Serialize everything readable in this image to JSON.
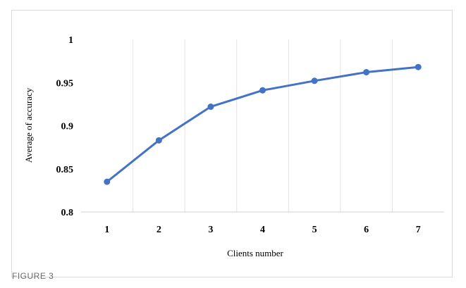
{
  "caption": "FIGURE 3",
  "colors": {
    "series": "#4472c4",
    "grid": "#e3e3e3",
    "axis": "#d0d0d0",
    "text": "#000000"
  },
  "chart_data": {
    "type": "line",
    "title": "",
    "xlabel": "Clients number",
    "ylabel": "Average of accuracy",
    "x": [
      1,
      2,
      3,
      4,
      5,
      6,
      7
    ],
    "x_tick_labels": [
      "1",
      "2",
      "3",
      "4",
      "5",
      "6",
      "7"
    ],
    "ylim": [
      0.8,
      1
    ],
    "y_ticks": [
      0.8,
      0.85,
      0.9,
      0.95,
      1
    ],
    "y_tick_labels": [
      "0.8",
      "0.85",
      "0.9",
      "0.95",
      "1"
    ],
    "grid": "vertical",
    "legend": "none",
    "series": [
      {
        "name": "Average of accuracy",
        "values": [
          0.835,
          0.883,
          0.922,
          0.941,
          0.952,
          0.962,
          0.968
        ]
      }
    ]
  }
}
